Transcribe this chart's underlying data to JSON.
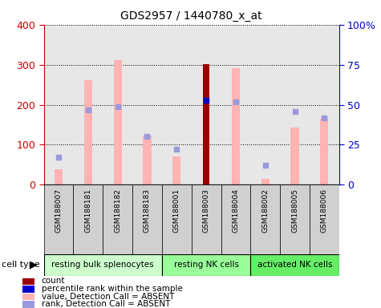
{
  "title": "GDS2957 / 1440780_x_at",
  "samples": [
    "GSM188007",
    "GSM188181",
    "GSM188182",
    "GSM188183",
    "GSM188001",
    "GSM188003",
    "GSM188004",
    "GSM188002",
    "GSM188005",
    "GSM188006"
  ],
  "cell_type_groups": [
    {
      "label": "resting bulk splenocytes",
      "start": 0,
      "end": 3
    },
    {
      "label": "resting NK cells",
      "start": 4,
      "end": 6
    },
    {
      "label": "activated NK cells",
      "start": 7,
      "end": 9
    }
  ],
  "group_colors": [
    "#ccffcc",
    "#99ff99",
    "#66ee66"
  ],
  "value_bars": [
    38,
    262,
    312,
    122,
    70,
    302,
    292,
    15,
    143,
    165
  ],
  "rank_pct": [
    17,
    47,
    49,
    30,
    22,
    53,
    52,
    12,
    46,
    42
  ],
  "count_bar_index": 5,
  "count_value": 302,
  "count_rank_pct": 53,
  "ylim_left": [
    0,
    400
  ],
  "ylim_right": [
    0,
    100
  ],
  "yticks_left": [
    0,
    100,
    200,
    300,
    400
  ],
  "yticks_right": [
    0,
    25,
    50,
    75,
    100
  ],
  "yticks_right_labels": [
    "0",
    "25",
    "50",
    "75",
    "100%"
  ],
  "left_axis_color": "#cc0000",
  "right_axis_color": "#0000cc",
  "value_bar_color": "#ffb3b3",
  "rank_dot_color_absent": "#9999dd",
  "count_bar_color": "#990000",
  "count_dot_color": "#0000cc",
  "legend_items": [
    {
      "label": "count",
      "color": "#990000"
    },
    {
      "label": "percentile rank within the sample",
      "color": "#0000cc"
    },
    {
      "label": "value, Detection Call = ABSENT",
      "color": "#ffb3b3"
    },
    {
      "label": "rank, Detection Call = ABSENT",
      "color": "#9999dd"
    }
  ]
}
